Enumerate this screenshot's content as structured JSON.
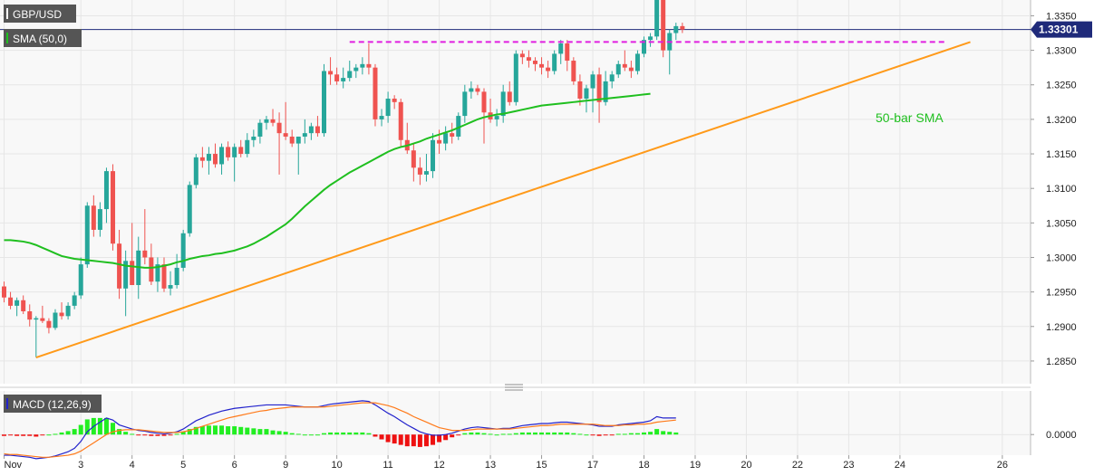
{
  "colors": {
    "bull": "#26a69a",
    "bear": "#ef5350",
    "sma": "#1fbf1f",
    "trend": "#ff9a1a",
    "resistance": "#e01fe0",
    "price_line": "#1f2a7a",
    "macd_line": "#2222cc",
    "signal_line": "#ff7a1a",
    "hist_pos": "#22ee22",
    "hist_neg": "#ee1111",
    "grid": "#e6e6e6",
    "panel_bg": "#f8f8f8",
    "badge_bg": "#555555"
  },
  "chart_data": [
    {
      "type": "candlestick",
      "symbol": "GBP/USD",
      "indicator_badge": "SMA (50,0)",
      "annotation": "50-bar SMA",
      "current_price_label": "1.33301",
      "current_price": 1.33301,
      "y_ticks": [
        "1.3350",
        "1.3300",
        "1.3250",
        "1.3200",
        "1.3150",
        "1.3100",
        "1.3050",
        "1.3000",
        "1.2950",
        "1.2900",
        "1.2850"
      ],
      "ylim": [
        1.2825,
        1.3365
      ],
      "x_labels": [
        {
          "label": "Nov",
          "bar": 0
        },
        {
          "label": "3",
          "bar": 12
        },
        {
          "label": "4",
          "bar": 20
        },
        {
          "label": "5",
          "bar": 28
        },
        {
          "label": "6",
          "bar": 36
        },
        {
          "label": "9",
          "bar": 44
        },
        {
          "label": "10",
          "bar": 52
        },
        {
          "label": "11",
          "bar": 60
        },
        {
          "label": "12",
          "bar": 68
        },
        {
          "label": "13",
          "bar": 76
        },
        {
          "label": "15",
          "bar": 84
        },
        {
          "label": "17",
          "bar": 92
        },
        {
          "label": "18",
          "bar": 100
        },
        {
          "label": "19",
          "bar": 108
        },
        {
          "label": "20",
          "bar": 116
        },
        {
          "label": "22",
          "bar": 124
        },
        {
          "label": "23",
          "bar": 132
        },
        {
          "label": "24",
          "bar": 140
        },
        {
          "label": "26",
          "bar": 156
        }
      ],
      "candles": [
        [
          1.2958,
          1.2965,
          1.2935,
          1.2942
        ],
        [
          1.2942,
          1.295,
          1.2925,
          1.293
        ],
        [
          1.293,
          1.2942,
          1.2915,
          1.2938
        ],
        [
          1.2938,
          1.2945,
          1.2918,
          1.2922
        ],
        [
          1.2922,
          1.2932,
          1.29,
          1.291
        ],
        [
          1.291,
          1.2915,
          1.2855,
          1.2912
        ],
        [
          1.2912,
          1.293,
          1.2905,
          1.2908
        ],
        [
          1.2908,
          1.2912,
          1.289,
          1.2898
        ],
        [
          1.2898,
          1.2925,
          1.2895,
          1.292
        ],
        [
          1.292,
          1.2935,
          1.291,
          1.2915
        ],
        [
          1.2915,
          1.2935,
          1.291,
          1.293
        ],
        [
          1.293,
          1.295,
          1.2925,
          1.2945
        ],
        [
          1.2945,
          1.3,
          1.294,
          1.299
        ],
        [
          1.299,
          1.308,
          1.2985,
          1.3075
        ],
        [
          1.3075,
          1.309,
          1.303,
          1.304
        ],
        [
          1.304,
          1.308,
          1.303,
          1.307
        ],
        [
          1.307,
          1.313,
          1.305,
          1.3125
        ],
        [
          1.3125,
          1.3135,
          1.301,
          1.302
        ],
        [
          1.302,
          1.304,
          1.294,
          1.2955
        ],
        [
          1.2955,
          1.301,
          1.2915,
          1.2995
        ],
        [
          1.2995,
          1.305,
          1.296,
          1.296
        ],
        [
          1.296,
          1.303,
          1.294,
          1.301
        ],
        [
          1.301,
          1.307,
          1.299,
          1.3
        ],
        [
          1.3,
          1.302,
          1.296,
          1.2965
        ],
        [
          1.2965,
          1.3,
          1.295,
          1.299
        ],
        [
          1.299,
          1.3,
          1.295,
          1.2955
        ],
        [
          1.2955,
          1.298,
          1.2945,
          1.296
        ],
        [
          1.296,
          1.3005,
          1.2955,
          1.2985
        ],
        [
          1.2985,
          1.304,
          1.298,
          1.3035
        ],
        [
          1.3035,
          1.311,
          1.303,
          1.3105
        ],
        [
          1.3105,
          1.315,
          1.31,
          1.3145
        ],
        [
          1.3145,
          1.316,
          1.313,
          1.314
        ],
        [
          1.314,
          1.316,
          1.312,
          1.315
        ],
        [
          1.315,
          1.3165,
          1.313,
          1.3135
        ],
        [
          1.3135,
          1.3165,
          1.312,
          1.316
        ],
        [
          1.316,
          1.3168,
          1.314,
          1.3145
        ],
        [
          1.3145,
          1.3165,
          1.311,
          1.316
        ],
        [
          1.316,
          1.317,
          1.3145,
          1.315
        ],
        [
          1.315,
          1.318,
          1.3145,
          1.317
        ],
        [
          1.317,
          1.3185,
          1.316,
          1.3175
        ],
        [
          1.3175,
          1.32,
          1.3165,
          1.3195
        ],
        [
          1.3195,
          1.3205,
          1.3185,
          1.32
        ],
        [
          1.32,
          1.3215,
          1.319,
          1.3195
        ],
        [
          1.3195,
          1.321,
          1.312,
          1.318
        ],
        [
          1.318,
          1.3225,
          1.317,
          1.3175
        ],
        [
          1.3175,
          1.3185,
          1.316,
          1.3165
        ],
        [
          1.3165,
          1.3175,
          1.312,
          1.3175
        ],
        [
          1.3175,
          1.32,
          1.3165,
          1.318
        ],
        [
          1.318,
          1.3195,
          1.317,
          1.319
        ],
        [
          1.319,
          1.3205,
          1.3175,
          1.318
        ],
        [
          1.318,
          1.328,
          1.3175,
          1.327
        ],
        [
          1.327,
          1.329,
          1.325,
          1.3265
        ],
        [
          1.3265,
          1.3275,
          1.325,
          1.3255
        ],
        [
          1.3255,
          1.3275,
          1.3245,
          1.326
        ],
        [
          1.326,
          1.3285,
          1.3255,
          1.327
        ],
        [
          1.327,
          1.328,
          1.326,
          1.3275
        ],
        [
          1.3275,
          1.329,
          1.3265,
          1.328
        ],
        [
          1.328,
          1.331,
          1.3265,
          1.3275
        ],
        [
          1.3275,
          1.328,
          1.319,
          1.32
        ],
        [
          1.32,
          1.3215,
          1.319,
          1.3205
        ],
        [
          1.3205,
          1.324,
          1.3195,
          1.323
        ],
        [
          1.323,
          1.3235,
          1.3215,
          1.3225
        ],
        [
          1.3225,
          1.323,
          1.316,
          1.317
        ],
        [
          1.317,
          1.3195,
          1.315,
          1.3155
        ],
        [
          1.3155,
          1.3165,
          1.311,
          1.313
        ],
        [
          1.313,
          1.3145,
          1.3105,
          1.312
        ],
        [
          1.312,
          1.315,
          1.311,
          1.3125
        ],
        [
          1.3125,
          1.318,
          1.3115,
          1.317
        ],
        [
          1.317,
          1.3185,
          1.315,
          1.3165
        ],
        [
          1.3165,
          1.319,
          1.3155,
          1.318
        ],
        [
          1.318,
          1.3195,
          1.3165,
          1.3175
        ],
        [
          1.3175,
          1.321,
          1.317,
          1.3205
        ],
        [
          1.3205,
          1.325,
          1.3195,
          1.324
        ],
        [
          1.324,
          1.3255,
          1.323,
          1.3245
        ],
        [
          1.3245,
          1.325,
          1.3235,
          1.324
        ],
        [
          1.324,
          1.3245,
          1.3165,
          1.321
        ],
        [
          1.321,
          1.323,
          1.3195,
          1.32
        ],
        [
          1.32,
          1.3215,
          1.319,
          1.3205
        ],
        [
          1.3205,
          1.325,
          1.3195,
          1.324
        ],
        [
          1.324,
          1.3255,
          1.322,
          1.3225
        ],
        [
          1.3225,
          1.33,
          1.322,
          1.3295
        ],
        [
          1.3295,
          1.33,
          1.328,
          1.329
        ],
        [
          1.329,
          1.33,
          1.3275,
          1.3285
        ],
        [
          1.3285,
          1.329,
          1.327,
          1.328
        ],
        [
          1.328,
          1.329,
          1.3265,
          1.3275
        ],
        [
          1.3275,
          1.3285,
          1.326,
          1.327
        ],
        [
          1.327,
          1.33,
          1.3265,
          1.3295
        ],
        [
          1.3295,
          1.3315,
          1.328,
          1.331
        ],
        [
          1.331,
          1.3315,
          1.327,
          1.3285
        ],
        [
          1.3285,
          1.329,
          1.325,
          1.3255
        ],
        [
          1.3255,
          1.3265,
          1.322,
          1.323
        ],
        [
          1.323,
          1.325,
          1.321,
          1.3245
        ],
        [
          1.3245,
          1.327,
          1.321,
          1.3265
        ],
        [
          1.3265,
          1.3275,
          1.3195,
          1.3225
        ],
        [
          1.3225,
          1.327,
          1.322,
          1.3255
        ],
        [
          1.3255,
          1.327,
          1.3245,
          1.3265
        ],
        [
          1.3265,
          1.3285,
          1.326,
          1.328
        ],
        [
          1.328,
          1.33,
          1.327,
          1.3275
        ],
        [
          1.3275,
          1.3285,
          1.326,
          1.327
        ],
        [
          1.327,
          1.33,
          1.3265,
          1.3295
        ],
        [
          1.3295,
          1.332,
          1.329,
          1.3315
        ],
        [
          1.3315,
          1.3325,
          1.3305,
          1.332
        ],
        [
          1.332,
          1.338,
          1.3315,
          1.3375
        ],
        [
          1.3375,
          1.3395,
          1.329,
          1.33
        ],
        [
          1.33,
          1.333,
          1.3265,
          1.3325
        ],
        [
          1.3325,
          1.334,
          1.3315,
          1.3335
        ],
        [
          1.3335,
          1.334,
          1.3325,
          1.333
        ]
      ],
      "sma": [
        1.3025,
        1.3025,
        1.3024,
        1.3023,
        1.3021,
        1.3018,
        1.3014,
        1.301,
        1.3006,
        1.3002,
        1.3,
        1.2998,
        1.2997,
        1.2996,
        1.2995,
        1.2994,
        1.2993,
        1.2992,
        1.299,
        1.2988,
        1.2987,
        1.2986,
        1.2985,
        1.2985,
        1.2986,
        1.2988,
        1.299,
        1.2993,
        1.2995,
        1.2998,
        1.3,
        1.3002,
        1.3003,
        1.3005,
        1.3006,
        1.3008,
        1.301,
        1.3013,
        1.3016,
        1.302,
        1.3025,
        1.303,
        1.3036,
        1.3042,
        1.3048,
        1.3056,
        1.3065,
        1.3074,
        1.3082,
        1.309,
        1.3098,
        1.3105,
        1.3111,
        1.3117,
        1.3123,
        1.3128,
        1.3133,
        1.3138,
        1.3143,
        1.3148,
        1.3153,
        1.3157,
        1.316,
        1.3162,
        1.3165,
        1.3168,
        1.3172,
        1.3175,
        1.3178,
        1.3181,
        1.3184,
        1.3188,
        1.3192,
        1.3196,
        1.32,
        1.3203,
        1.3205,
        1.3207,
        1.3208,
        1.321,
        1.3212,
        1.3214,
        1.3216,
        1.3218,
        1.322,
        1.3221,
        1.3222,
        1.3223,
        1.3224,
        1.3225,
        1.3226,
        1.3227,
        1.3228,
        1.3229,
        1.323,
        1.3231,
        1.3232,
        1.3233,
        1.3234,
        1.3235,
        1.3236,
        1.3237
      ],
      "trendline": {
        "from_bar": 5,
        "from_price": 1.2855,
        "to_bar": 151,
        "to_price": 1.3312
      },
      "resistance": {
        "from_bar": 54,
        "to_bar": 147,
        "price": 1.3312
      }
    },
    {
      "type": "macd",
      "label": "MACD (12,26,9)",
      "y_tick": "0.0000",
      "ylim": [
        -0.0026,
        0.0058
      ],
      "macd": [
        -0.003,
        -0.003,
        -0.0031,
        -0.0032,
        -0.0033,
        -0.0035,
        -0.0034,
        -0.0033,
        -0.0031,
        -0.0028,
        -0.0025,
        -0.002,
        -0.001,
        0.0004,
        0.0012,
        0.0018,
        0.0024,
        0.0021,
        0.0014,
        0.0011,
        0.0008,
        0.0006,
        0.0005,
        0.0003,
        0.0002,
        0.0001,
        0.0002,
        0.0004,
        0.0008,
        0.0014,
        0.002,
        0.0024,
        0.0028,
        0.0031,
        0.0034,
        0.0036,
        0.0038,
        0.0039,
        0.004,
        0.0041,
        0.0042,
        0.0043,
        0.0043,
        0.0043,
        0.0043,
        0.0042,
        0.0041,
        0.004,
        0.004,
        0.004,
        0.0042,
        0.0044,
        0.0045,
        0.0046,
        0.0047,
        0.0048,
        0.0049,
        0.0048,
        0.0043,
        0.0037,
        0.0031,
        0.0026,
        0.002,
        0.0014,
        0.0009,
        0.0004,
        0.0001,
        -0.0001,
        -0.0001,
        0.0,
        0.0002,
        0.0005,
        0.0008,
        0.001,
        0.0011,
        0.001,
        0.0009,
        0.0008,
        0.0009,
        0.0009,
        0.0011,
        0.0013,
        0.0014,
        0.0015,
        0.0016,
        0.0016,
        0.0017,
        0.0018,
        0.0018,
        0.0017,
        0.0016,
        0.0015,
        0.0014,
        0.0012,
        0.0012,
        0.0012,
        0.0014,
        0.0015,
        0.0016,
        0.0017,
        0.0018,
        0.002,
        0.0026,
        0.0024,
        0.0024,
        0.0024
      ],
      "signal": [
        -0.0028,
        -0.0029,
        -0.0029,
        -0.003,
        -0.0031,
        -0.0032,
        -0.0033,
        -0.0033,
        -0.0032,
        -0.0031,
        -0.003,
        -0.0028,
        -0.0024,
        -0.0018,
        -0.0012,
        -0.0006,
        0.0,
        0.0004,
        0.0006,
        0.0007,
        0.0007,
        0.0007,
        0.0006,
        0.0005,
        0.0004,
        0.0003,
        0.0003,
        0.0003,
        0.0004,
        0.0006,
        0.0009,
        0.0012,
        0.0015,
        0.0018,
        0.0021,
        0.0024,
        0.0026,
        0.0028,
        0.003,
        0.0032,
        0.0034,
        0.0035,
        0.0037,
        0.0038,
        0.0039,
        0.004,
        0.004,
        0.004,
        0.004,
        0.004,
        0.004,
        0.0041,
        0.0042,
        0.0043,
        0.0044,
        0.0045,
        0.0046,
        0.0046,
        0.0046,
        0.0044,
        0.0042,
        0.0039,
        0.0035,
        0.0031,
        0.0026,
        0.0022,
        0.0018,
        0.0014,
        0.001,
        0.0008,
        0.0006,
        0.0006,
        0.0006,
        0.0007,
        0.0008,
        0.0008,
        0.0008,
        0.0008,
        0.0008,
        0.0008,
        0.0009,
        0.001,
        0.0011,
        0.0012,
        0.0013,
        0.0013,
        0.0014,
        0.0015,
        0.0015,
        0.0015,
        0.0015,
        0.0015,
        0.0015,
        0.0014,
        0.0013,
        0.0013,
        0.0013,
        0.0014,
        0.0014,
        0.0015,
        0.0015,
        0.0016,
        0.0018,
        0.0019,
        0.002,
        0.0021
      ]
    }
  ]
}
